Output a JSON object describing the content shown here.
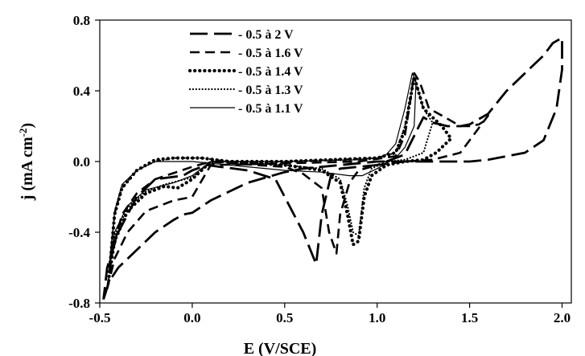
{
  "chart_data": {
    "type": "line",
    "title": "",
    "xlabel": "E (V/SCE)",
    "ylabel": "j (mA cm-2)",
    "ylabel_parts": {
      "main": "j (mA cm",
      "sup": "-2",
      "close": ")"
    },
    "xlim": [
      -0.5,
      2.05
    ],
    "ylim": [
      -0.8,
      0.8
    ],
    "x_ticks": [
      -0.5,
      0.0,
      0.5,
      1.0,
      1.5,
      2.0
    ],
    "x_tick_labels": [
      "-0.5",
      "0.0",
      "0.5",
      "1.0",
      "1.5",
      "2.0"
    ],
    "y_ticks": [
      -0.8,
      -0.4,
      0.0,
      0.4,
      0.8
    ],
    "y_tick_labels": [
      "-0.8",
      "-0.4",
      "0.0",
      "0.4",
      "0.8"
    ],
    "grid": false,
    "legend_position": "top-left",
    "series": [
      {
        "name": "- 0.5 à 2 V",
        "style": "long-dash",
        "color": "#000000",
        "x": [
          -0.48,
          -0.45,
          -0.4,
          -0.3,
          -0.2,
          -0.1,
          -0.05,
          0.0,
          0.1,
          0.3,
          0.5,
          0.6,
          1.0,
          1.2,
          1.4,
          1.5,
          1.6,
          1.8,
          1.9,
          1.97,
          2.0,
          2.0,
          1.95,
          1.9,
          1.8,
          1.7,
          1.6,
          1.55,
          1.5,
          1.45,
          1.38,
          1.3,
          1.25,
          1.15,
          1.0,
          0.8,
          0.75,
          0.7,
          0.67,
          0.6,
          0.5,
          0.45,
          0.3,
          0.15,
          0.08,
          0.0,
          -0.05,
          -0.2,
          -0.3,
          -0.4,
          -0.46,
          -0.48
        ],
        "y": [
          -0.78,
          -0.68,
          -0.6,
          -0.5,
          -0.4,
          -0.33,
          -0.3,
          -0.29,
          -0.22,
          -0.12,
          -0.06,
          -0.04,
          0.0,
          0.0,
          0.0,
          0.0,
          0.01,
          0.05,
          0.12,
          0.3,
          0.52,
          0.7,
          0.67,
          0.6,
          0.5,
          0.4,
          0.27,
          0.24,
          0.21,
          0.2,
          0.2,
          0.22,
          0.25,
          0.04,
          -0.02,
          -0.04,
          -0.08,
          -0.3,
          -0.58,
          -0.4,
          -0.2,
          -0.1,
          -0.05,
          -0.03,
          -0.02,
          -0.05,
          -0.08,
          -0.1,
          -0.2,
          -0.4,
          -0.6,
          -0.78
        ]
      },
      {
        "name": "- 0.5 à 1.6 V",
        "style": "dash",
        "color": "#000000",
        "x": [
          -0.46,
          -0.42,
          -0.35,
          -0.25,
          -0.1,
          0.0,
          0.1,
          0.5,
          0.9,
          1.1,
          1.15,
          1.18,
          1.2,
          1.23,
          1.28,
          1.35,
          1.45,
          1.5,
          1.55,
          1.58,
          1.6,
          1.45,
          1.3,
          1.15,
          1.0,
          0.9,
          0.85,
          0.8,
          0.78,
          0.74,
          0.7,
          0.6,
          0.5,
          0.2,
          0.1,
          0.0,
          -0.2,
          -0.3,
          -0.38,
          -0.43,
          -0.46
        ],
        "y": [
          -0.72,
          -0.55,
          -0.4,
          -0.28,
          -0.22,
          -0.2,
          -0.02,
          -0.01,
          0.0,
          0.03,
          0.15,
          0.35,
          0.5,
          0.45,
          0.3,
          0.26,
          0.2,
          0.2,
          0.21,
          0.23,
          0.26,
          0.05,
          0.01,
          0.0,
          -0.02,
          -0.05,
          -0.12,
          -0.3,
          -0.52,
          -0.4,
          -0.15,
          -0.07,
          -0.03,
          -0.01,
          0.0,
          -0.03,
          -0.1,
          -0.18,
          -0.3,
          -0.5,
          -0.72
        ]
      },
      {
        "name": "- 0.5 à 1.4 V",
        "style": "dot-bold",
        "color": "#000000",
        "x": [
          -0.45,
          -0.42,
          -0.35,
          -0.25,
          -0.15,
          -0.08,
          0.0,
          0.1,
          0.5,
          1.0,
          1.1,
          1.15,
          1.2,
          1.25,
          1.3,
          1.35,
          1.4,
          1.32,
          1.25,
          1.15,
          1.05,
          0.97,
          0.93,
          0.9,
          0.87,
          0.84,
          0.8,
          0.7,
          0.5,
          0.2,
          0.05,
          -0.1,
          -0.2,
          -0.3,
          -0.38,
          -0.42,
          -0.45
        ],
        "y": [
          -0.65,
          -0.45,
          -0.28,
          -0.18,
          -0.14,
          -0.15,
          -0.1,
          0.0,
          0.0,
          0.02,
          0.05,
          0.18,
          0.48,
          0.3,
          0.25,
          0.2,
          0.13,
          0.05,
          0.01,
          0.0,
          -0.02,
          -0.08,
          -0.2,
          -0.45,
          -0.47,
          -0.3,
          -0.12,
          -0.05,
          -0.02,
          0.0,
          0.02,
          0.02,
          0.01,
          -0.05,
          -0.15,
          -0.3,
          -0.65
        ]
      },
      {
        "name": "- 0.5 à 1.3 V",
        "style": "dot",
        "color": "#000000",
        "x": [
          -0.45,
          -0.42,
          -0.35,
          -0.25,
          -0.15,
          0.0,
          0.1,
          0.5,
          1.0,
          1.1,
          1.15,
          1.2,
          1.25,
          1.3,
          1.25,
          1.15,
          1.05,
          0.97,
          0.93,
          0.9,
          0.87,
          0.84,
          0.8,
          0.7,
          0.5,
          0.2,
          0.05,
          -0.1,
          -0.2,
          -0.3,
          -0.38,
          -0.42,
          -0.45
        ],
        "y": [
          -0.62,
          -0.42,
          -0.26,
          -0.17,
          -0.13,
          -0.09,
          0.0,
          0.0,
          0.02,
          0.05,
          0.2,
          0.48,
          0.3,
          0.22,
          0.05,
          0.01,
          0.0,
          -0.04,
          -0.15,
          -0.42,
          -0.4,
          -0.25,
          -0.1,
          -0.04,
          -0.02,
          0.0,
          0.02,
          0.02,
          0.0,
          -0.05,
          -0.15,
          -0.3,
          -0.62
        ]
      },
      {
        "name": "- 0.5 à 1.1 V",
        "style": "solid",
        "color": "#000000",
        "x": [
          -0.45,
          -0.42,
          -0.35,
          -0.25,
          -0.1,
          0.0,
          0.1,
          0.5,
          0.9,
          1.0,
          1.05,
          1.1,
          1.15,
          1.19,
          1.21,
          1.2,
          1.15,
          1.1,
          1.0,
          0.92,
          0.85,
          0.7,
          0.5,
          0.3,
          0.1,
          0.0,
          -0.1,
          -0.2,
          -0.3,
          -0.38,
          -0.42,
          -0.45
        ],
        "y": [
          -0.6,
          -0.4,
          -0.25,
          -0.16,
          -0.12,
          -0.08,
          0.0,
          0.0,
          0.01,
          0.02,
          0.04,
          0.1,
          0.3,
          0.5,
          0.45,
          0.2,
          0.08,
          0.02,
          -0.04,
          -0.08,
          -0.08,
          -0.06,
          -0.05,
          -0.03,
          -0.01,
          0.0,
          0.0,
          0.0,
          -0.05,
          -0.13,
          -0.28,
          -0.6
        ]
      }
    ]
  }
}
